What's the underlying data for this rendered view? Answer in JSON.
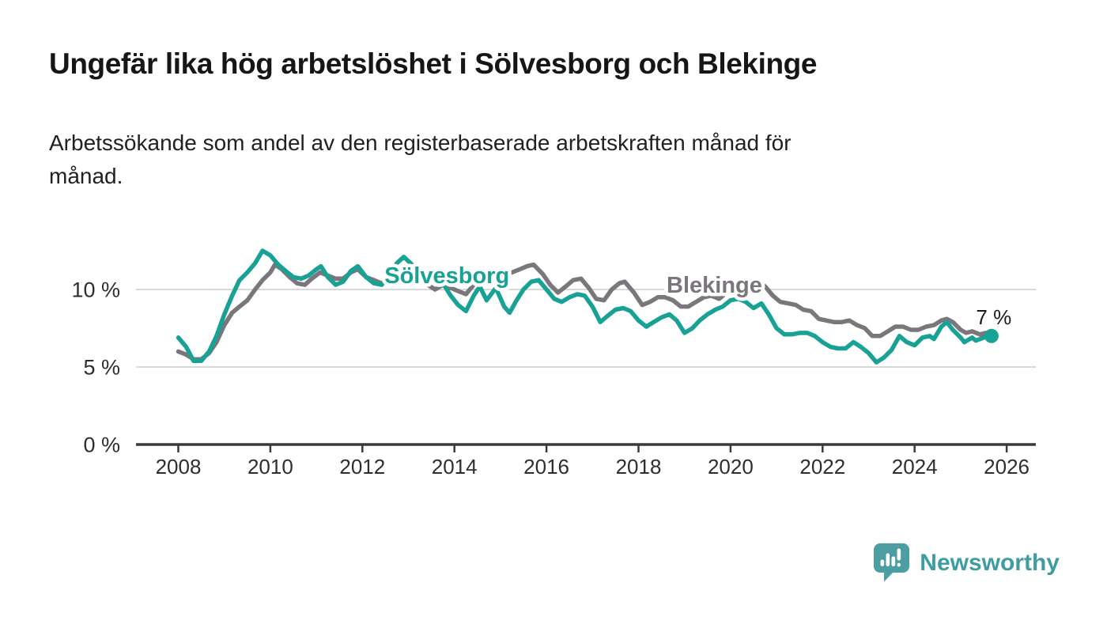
{
  "header": {
    "title": "Ungefär lika hög arbetslöshet i Sölvesborg och Blekinge",
    "subtitle_lines": [
      "Arbetssökande som andel av den registerbaserade arbetskraften månad för",
      "månad."
    ]
  },
  "chart_data": {
    "type": "line",
    "title": "Ungefär lika hög arbetslöshet i Sölvesborg och Blekinge",
    "subtitle": "Arbetssökande som andel av den registerbaserade arbetskraften månad för månad.",
    "unit": "%",
    "grid": "horizontal",
    "colors": {
      "grid": "#d9d9d9",
      "axis": "#3a3a3a",
      "tick_text": "#2e2e2e",
      "annotation_text": "#1b1b1b"
    },
    "x_axis": {
      "range": [
        2007.05,
        2026.6
      ],
      "ticks": [
        {
          "value": 2008,
          "label": "2008"
        },
        {
          "value": 2010,
          "label": "2010"
        },
        {
          "value": 2012,
          "label": "2012"
        },
        {
          "value": 2014,
          "label": "2014"
        },
        {
          "value": 2016,
          "label": "2016"
        },
        {
          "value": 2018,
          "label": "2018"
        },
        {
          "value": 2020,
          "label": "2020"
        },
        {
          "value": 2022,
          "label": "2022"
        },
        {
          "value": 2024,
          "label": "2024"
        },
        {
          "value": 2026,
          "label": "2026"
        }
      ]
    },
    "y_axis": {
      "range": [
        0,
        13.5
      ],
      "ticks": [
        {
          "value": 0,
          "label": "0 %"
        },
        {
          "value": 5,
          "label": "5 %"
        },
        {
          "value": 10,
          "label": "10 %"
        }
      ]
    },
    "series": [
      {
        "name": "Blekinge",
        "color": "#7a767c",
        "label_anchor": {
          "year": 2018.61,
          "pct": 9.8
        },
        "points": [
          [
            2008.0,
            6.0
          ],
          [
            2008.17,
            5.8
          ],
          [
            2008.33,
            5.5
          ],
          [
            2008.5,
            5.5
          ],
          [
            2008.67,
            5.9
          ],
          [
            2008.83,
            6.6
          ],
          [
            2009.0,
            7.7
          ],
          [
            2009.17,
            8.5
          ],
          [
            2009.33,
            8.9
          ],
          [
            2009.5,
            9.3
          ],
          [
            2009.67,
            10.0
          ],
          [
            2009.83,
            10.6
          ],
          [
            2010.0,
            11.1
          ],
          [
            2010.1,
            11.6
          ],
          [
            2010.25,
            11.3
          ],
          [
            2010.42,
            10.8
          ],
          [
            2010.58,
            10.4
          ],
          [
            2010.75,
            10.3
          ],
          [
            2010.9,
            10.7
          ],
          [
            2011.08,
            11.1
          ],
          [
            2011.25,
            10.9
          ],
          [
            2011.42,
            10.7
          ],
          [
            2011.58,
            10.7
          ],
          [
            2011.75,
            11.1
          ],
          [
            2011.9,
            11.3
          ],
          [
            2012.08,
            10.8
          ],
          [
            2012.25,
            10.6
          ],
          [
            2012.42,
            10.4
          ],
          [
            2012.58,
            10.6
          ],
          [
            2012.75,
            11.0
          ],
          [
            2012.9,
            11.4
          ],
          [
            2013.08,
            11.5
          ],
          [
            2013.25,
            10.9
          ],
          [
            2013.42,
            10.3
          ],
          [
            2013.58,
            10.0
          ],
          [
            2013.75,
            10.3
          ],
          [
            2013.92,
            10.1
          ],
          [
            2014.08,
            9.9
          ],
          [
            2014.25,
            9.7
          ],
          [
            2014.42,
            10.3
          ],
          [
            2014.58,
            10.8
          ],
          [
            2014.75,
            10.5
          ],
          [
            2014.92,
            10.8
          ],
          [
            2015.08,
            11.0
          ],
          [
            2015.25,
            11.1
          ],
          [
            2015.42,
            11.3
          ],
          [
            2015.58,
            11.5
          ],
          [
            2015.72,
            11.6
          ],
          [
            2015.92,
            11.0
          ],
          [
            2016.08,
            10.3
          ],
          [
            2016.25,
            9.8
          ],
          [
            2016.42,
            10.2
          ],
          [
            2016.58,
            10.6
          ],
          [
            2016.75,
            10.7
          ],
          [
            2016.92,
            10.1
          ],
          [
            2017.08,
            9.4
          ],
          [
            2017.25,
            9.3
          ],
          [
            2017.42,
            10.0
          ],
          [
            2017.58,
            10.4
          ],
          [
            2017.7,
            10.5
          ],
          [
            2017.9,
            9.8
          ],
          [
            2018.08,
            9.0
          ],
          [
            2018.25,
            9.2
          ],
          [
            2018.42,
            9.5
          ],
          [
            2018.58,
            9.5
          ],
          [
            2018.75,
            9.3
          ],
          [
            2018.92,
            8.9
          ],
          [
            2019.08,
            8.9
          ],
          [
            2019.25,
            9.2
          ],
          [
            2019.42,
            9.5
          ],
          [
            2019.58,
            9.6
          ],
          [
            2019.75,
            9.4
          ],
          [
            2019.92,
            9.8
          ],
          [
            2020.08,
            10.1
          ],
          [
            2020.25,
            10.3
          ],
          [
            2020.42,
            10.5
          ],
          [
            2020.58,
            10.4
          ],
          [
            2020.75,
            10.2
          ],
          [
            2020.92,
            9.6
          ],
          [
            2021.08,
            9.2
          ],
          [
            2021.25,
            9.1
          ],
          [
            2021.42,
            9.0
          ],
          [
            2021.58,
            8.7
          ],
          [
            2021.75,
            8.6
          ],
          [
            2021.92,
            8.1
          ],
          [
            2022.08,
            8.0
          ],
          [
            2022.25,
            7.9
          ],
          [
            2022.42,
            7.9
          ],
          [
            2022.58,
            8.0
          ],
          [
            2022.75,
            7.7
          ],
          [
            2022.92,
            7.5
          ],
          [
            2023.08,
            7.0
          ],
          [
            2023.25,
            7.0
          ],
          [
            2023.42,
            7.3
          ],
          [
            2023.58,
            7.6
          ],
          [
            2023.75,
            7.6
          ],
          [
            2023.92,
            7.4
          ],
          [
            2024.08,
            7.4
          ],
          [
            2024.25,
            7.6
          ],
          [
            2024.42,
            7.7
          ],
          [
            2024.58,
            8.0
          ],
          [
            2024.7,
            8.1
          ],
          [
            2024.83,
            7.9
          ],
          [
            2025.0,
            7.4
          ],
          [
            2025.12,
            7.2
          ],
          [
            2025.25,
            7.3
          ],
          [
            2025.42,
            7.1
          ],
          [
            2025.55,
            7.2
          ],
          [
            2025.67,
            7.1
          ]
        ]
      },
      {
        "name": "Sölvesborg",
        "color": "#18a195",
        "label_anchor": {
          "year": 2012.48,
          "pct": 10.41
        },
        "points": [
          [
            2008.0,
            6.9
          ],
          [
            2008.17,
            6.3
          ],
          [
            2008.33,
            5.4
          ],
          [
            2008.5,
            5.4
          ],
          [
            2008.67,
            6.0
          ],
          [
            2008.83,
            7.0
          ],
          [
            2009.0,
            8.4
          ],
          [
            2009.17,
            9.6
          ],
          [
            2009.33,
            10.6
          ],
          [
            2009.5,
            11.1
          ],
          [
            2009.67,
            11.7
          ],
          [
            2009.83,
            12.5
          ],
          [
            2010.0,
            12.2
          ],
          [
            2010.17,
            11.6
          ],
          [
            2010.33,
            11.2
          ],
          [
            2010.5,
            10.8
          ],
          [
            2010.67,
            10.7
          ],
          [
            2010.83,
            10.9
          ],
          [
            2011.0,
            11.3
          ],
          [
            2011.1,
            11.5
          ],
          [
            2011.25,
            10.8
          ],
          [
            2011.42,
            10.3
          ],
          [
            2011.58,
            10.5
          ],
          [
            2011.75,
            11.2
          ],
          [
            2011.9,
            11.5
          ],
          [
            2012.08,
            10.8
          ],
          [
            2012.25,
            10.4
          ],
          [
            2012.42,
            10.3
          ],
          [
            2012.58,
            10.9
          ],
          [
            2012.75,
            11.7
          ],
          [
            2012.9,
            12.1
          ],
          [
            2013.08,
            11.6
          ],
          [
            2013.25,
            11.0
          ],
          [
            2013.42,
            10.7
          ],
          [
            2013.58,
            10.8
          ],
          [
            2013.75,
            10.4
          ],
          [
            2013.92,
            9.6
          ],
          [
            2014.08,
            9.0
          ],
          [
            2014.25,
            8.6
          ],
          [
            2014.42,
            9.6
          ],
          [
            2014.55,
            10.2
          ],
          [
            2014.7,
            9.3
          ],
          [
            2014.9,
            10.1
          ],
          [
            2015.08,
            8.9
          ],
          [
            2015.2,
            8.5
          ],
          [
            2015.33,
            9.2
          ],
          [
            2015.5,
            10.0
          ],
          [
            2015.67,
            10.5
          ],
          [
            2015.83,
            10.6
          ],
          [
            2016.0,
            10.0
          ],
          [
            2016.17,
            9.4
          ],
          [
            2016.33,
            9.2
          ],
          [
            2016.5,
            9.5
          ],
          [
            2016.67,
            9.7
          ],
          [
            2016.83,
            9.6
          ],
          [
            2017.0,
            8.9
          ],
          [
            2017.17,
            7.9
          ],
          [
            2017.33,
            8.3
          ],
          [
            2017.5,
            8.7
          ],
          [
            2017.67,
            8.8
          ],
          [
            2017.83,
            8.6
          ],
          [
            2018.0,
            8.0
          ],
          [
            2018.17,
            7.6
          ],
          [
            2018.33,
            7.9
          ],
          [
            2018.5,
            8.2
          ],
          [
            2018.67,
            8.4
          ],
          [
            2018.83,
            8.0
          ],
          [
            2019.0,
            7.2
          ],
          [
            2019.17,
            7.5
          ],
          [
            2019.33,
            8.0
          ],
          [
            2019.5,
            8.4
          ],
          [
            2019.67,
            8.7
          ],
          [
            2019.83,
            8.9
          ],
          [
            2020.0,
            9.3
          ],
          [
            2020.17,
            9.4
          ],
          [
            2020.33,
            9.2
          ],
          [
            2020.5,
            8.8
          ],
          [
            2020.67,
            9.1
          ],
          [
            2020.83,
            8.4
          ],
          [
            2021.0,
            7.5
          ],
          [
            2021.17,
            7.1
          ],
          [
            2021.33,
            7.1
          ],
          [
            2021.5,
            7.2
          ],
          [
            2021.67,
            7.2
          ],
          [
            2021.83,
            7.0
          ],
          [
            2022.0,
            6.6
          ],
          [
            2022.17,
            6.3
          ],
          [
            2022.33,
            6.2
          ],
          [
            2022.5,
            6.2
          ],
          [
            2022.67,
            6.6
          ],
          [
            2022.83,
            6.3
          ],
          [
            2023.0,
            5.9
          ],
          [
            2023.17,
            5.3
          ],
          [
            2023.33,
            5.6
          ],
          [
            2023.5,
            6.1
          ],
          [
            2023.67,
            7.0
          ],
          [
            2023.83,
            6.6
          ],
          [
            2024.0,
            6.4
          ],
          [
            2024.17,
            6.9
          ],
          [
            2024.33,
            7.0
          ],
          [
            2024.42,
            6.8
          ],
          [
            2024.58,
            7.6
          ],
          [
            2024.7,
            7.9
          ],
          [
            2024.83,
            7.4
          ],
          [
            2025.0,
            6.9
          ],
          [
            2025.08,
            6.6
          ],
          [
            2025.25,
            6.9
          ],
          [
            2025.33,
            6.7
          ],
          [
            2025.5,
            6.9
          ],
          [
            2025.67,
            7.0
          ]
        ]
      }
    ],
    "end_annotation": {
      "text": "7 %",
      "anchor_year": 2025.72,
      "anchor_pct": 7.76,
      "dot": {
        "series": "Sölvesborg",
        "year": 2025.67,
        "value": 7.0,
        "color": "#18a195"
      }
    }
  },
  "footer": {
    "brand": "Newsworthy",
    "brand_color": "#3e9da0",
    "icon": "newsworthy-chart-bubble-icon",
    "icon_color": "#4d9ea3"
  }
}
